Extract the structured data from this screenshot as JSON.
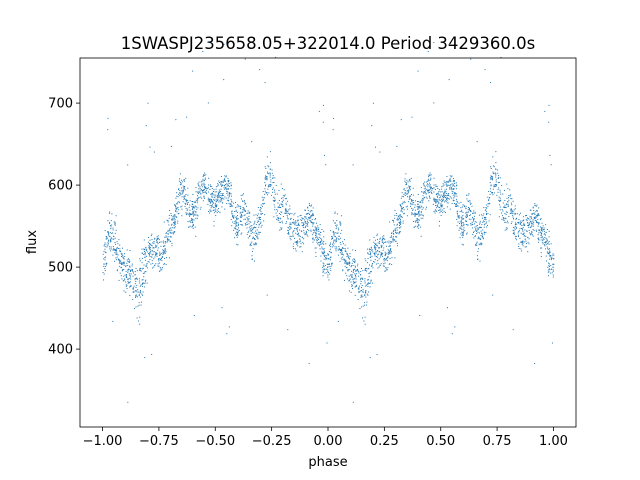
{
  "chart_data": {
    "type": "scatter",
    "title": "1SWASPJ235658.05+322014.0 Period 3429360.0s",
    "xlabel": "phase",
    "ylabel": "flux",
    "xlim": [
      -1.1,
      1.1
    ],
    "ylim": [
      305,
      755
    ],
    "xticks": [
      -1.0,
      -0.75,
      -0.5,
      -0.25,
      0.0,
      0.25,
      0.5,
      0.75,
      1.0
    ],
    "xtick_labels": [
      "−1.00",
      "−0.75",
      "−0.50",
      "−0.25",
      "0.00",
      "0.25",
      "0.50",
      "0.75",
      "1.00"
    ],
    "yticks": [
      400,
      500,
      600,
      700
    ],
    "ytick_labels": [
      "400",
      "500",
      "600",
      "700"
    ],
    "grid": false,
    "series_color": "#1f77b4",
    "series": [
      {
        "name": "",
        "note_repeat_period": 1.0,
        "x": [
          0.0,
          0.02,
          0.04,
          0.06,
          0.08,
          0.1,
          0.12,
          0.14,
          0.16,
          0.18,
          0.2,
          0.22,
          0.24,
          0.26,
          0.28,
          0.3,
          0.32,
          0.34,
          0.36,
          0.38,
          0.4,
          0.42,
          0.44,
          0.46,
          0.48,
          0.5,
          0.52,
          0.54,
          0.56,
          0.58,
          0.6,
          0.62,
          0.64,
          0.66,
          0.68,
          0.7,
          0.72,
          0.74,
          0.76,
          0.78,
          0.8,
          0.82,
          0.84,
          0.86,
          0.88,
          0.9,
          0.92,
          0.94,
          0.96,
          0.98,
          1.0
        ],
        "y": [
          505,
          530,
          545,
          520,
          505,
          500,
          490,
          480,
          470,
          500,
          515,
          525,
          520,
          510,
          530,
          545,
          560,
          590,
          595,
          570,
          565,
          580,
          600,
          595,
          580,
          575,
          590,
          600,
          595,
          560,
          550,
          575,
          560,
          535,
          545,
          560,
          600,
          610,
          585,
          570,
          575,
          560,
          550,
          540,
          545,
          555,
          565,
          545,
          530,
          515,
          505
        ],
        "spread": [
          40,
          50,
          55,
          50,
          45,
          45,
          50,
          60,
          70,
          55,
          45,
          45,
          45,
          40,
          45,
          40,
          40,
          40,
          40,
          45,
          40,
          40,
          35,
          35,
          40,
          40,
          35,
          35,
          35,
          40,
          40,
          40,
          45,
          50,
          45,
          40,
          40,
          40,
          45,
          45,
          45,
          40,
          40,
          40,
          40,
          40,
          40,
          40,
          40,
          45,
          40
        ]
      }
    ]
  }
}
